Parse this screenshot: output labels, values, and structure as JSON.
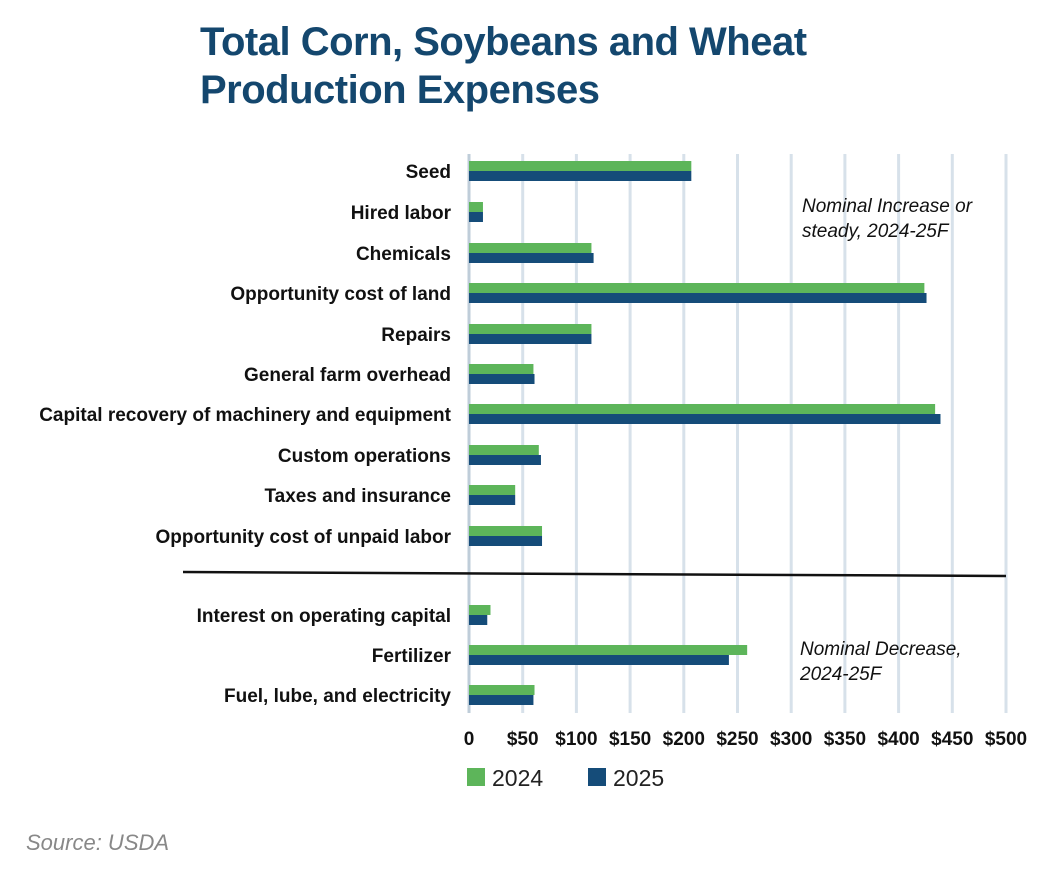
{
  "title_lines": [
    "Total Corn, Soybeans and Wheat",
    "Production Expenses"
  ],
  "source": "Source: USDA",
  "colors": {
    "2024": "#5db55a",
    "2025": "#154c79",
    "grid": "#d7e1ea",
    "title": "#14476e"
  },
  "chart_data": {
    "type": "bar",
    "orientation": "horizontal",
    "title": "Total Corn, Soybeans and Wheat Production Expenses",
    "categories": [
      "Seed",
      "Hired labor",
      "Chemicals",
      "Opportunity cost of land",
      "Repairs",
      "General farm overhead",
      "Capital recovery of machinery and equipment",
      "Custom operations",
      "Taxes and insurance",
      "Opportunity cost of unpaid labor",
      "Interest on operating capital",
      "Fertilizer",
      "Fuel, lube, and electricity"
    ],
    "groups": [
      {
        "label": "Nominal Increase or steady, 2024-25F",
        "start": 0,
        "end": 9
      },
      {
        "label": "Nominal Decrease, 2024-25F",
        "start": 10,
        "end": 12
      }
    ],
    "annotations": [
      {
        "lines": [
          "Nominal Increase or",
          "steady, 2024-25F"
        ]
      },
      {
        "lines": [
          "Nominal Decrease,",
          "2024-25F"
        ]
      }
    ],
    "series": [
      {
        "name": "2024",
        "values": [
          207,
          13,
          114,
          424,
          114,
          60,
          434,
          65,
          43,
          68,
          20,
          259,
          61
        ]
      },
      {
        "name": "2025",
        "values": [
          207,
          13,
          116,
          426,
          114,
          61,
          439,
          67,
          43,
          68,
          17,
          242,
          60
        ]
      }
    ],
    "xlim": [
      0,
      500
    ],
    "xticks": [
      0,
      50,
      100,
      150,
      200,
      250,
      300,
      350,
      400,
      450,
      500
    ],
    "xtick_labels": [
      "0",
      "$50",
      "$100",
      "$150",
      "$200",
      "$250",
      "$300",
      "$350",
      "$400",
      "$450",
      "$500"
    ],
    "legend": [
      "2024",
      "2025"
    ],
    "legend_position": "bottom",
    "grid": true
  }
}
